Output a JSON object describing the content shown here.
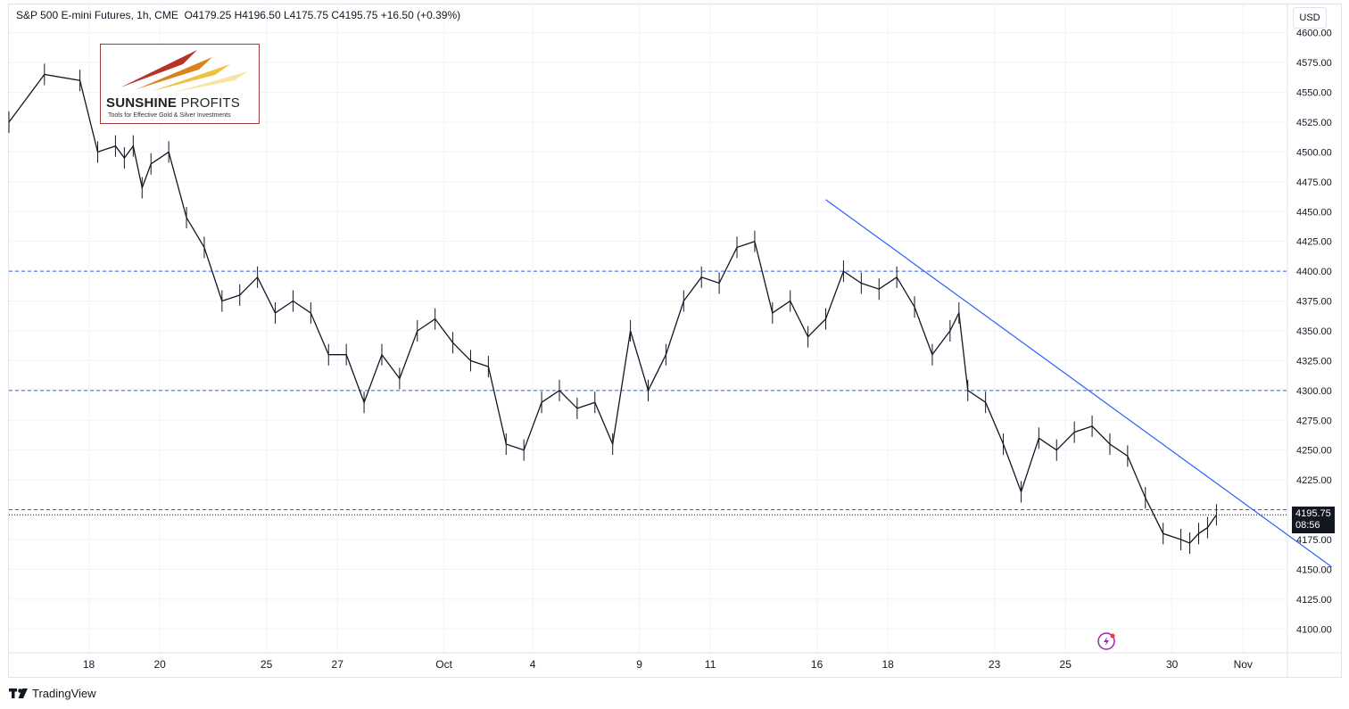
{
  "header": {
    "title": "S&P 500 E-mini Futures, 1h, CME",
    "ohlc": "O4179.25  H4196.50  L4175.75  C4195.75  +16.50 (+0.39%)"
  },
  "currency": "USD",
  "logo": {
    "brand_bold": "SUNSHINE",
    "brand_thin": " PROFITS",
    "tagline": "Tools for Effective Gold & Silver Investments"
  },
  "price_tag": {
    "price": "4195.75",
    "countdown": "08:56"
  },
  "footer": {
    "brand": "TradingView"
  },
  "colors": {
    "candle": "#131722",
    "trendline": "#2962ff",
    "level_line": "#2962ff",
    "grid": "#f0f3fa",
    "logo_border": "#9b3b3b"
  },
  "chart_data": {
    "type": "line",
    "series": [
      {
        "x": [
          0,
          2,
          4,
          5,
          6,
          6.5,
          7,
          7.5,
          8,
          9,
          10,
          11,
          12,
          13,
          14,
          15,
          16,
          17,
          18,
          19,
          20,
          21,
          22,
          23,
          24,
          25,
          26,
          27,
          28,
          29,
          30,
          31,
          32,
          33,
          34,
          35,
          36,
          37,
          38,
          39,
          40,
          41,
          42,
          43,
          44,
          45,
          46,
          47,
          48,
          49,
          50,
          51,
          52,
          53,
          53.5,
          54,
          55,
          56,
          57,
          58,
          59,
          60,
          61,
          62,
          63,
          64,
          65,
          66,
          66.5,
          67,
          67.5,
          68
        ],
        "values": [
          4525,
          4565,
          4560,
          4500,
          4505,
          4495,
          4505,
          4470,
          4490,
          4500,
          4445,
          4420,
          4375,
          4380,
          4395,
          4365,
          4375,
          4365,
          4330,
          4330,
          4290,
          4330,
          4310,
          4350,
          4360,
          4340,
          4325,
          4320,
          4255,
          4250,
          4290,
          4300,
          4285,
          4290,
          4255,
          4350,
          4300,
          4330,
          4375,
          4395,
          4390,
          4420,
          4425,
          4365,
          4375,
          4345,
          4360,
          4400,
          4390,
          4385,
          4395,
          4370,
          4330,
          4350,
          4365,
          4300,
          4290,
          4255,
          4215,
          4260,
          4250,
          4265,
          4270,
          4255,
          4245,
          4210,
          4180,
          4175,
          4172,
          4180,
          4185,
          4195.75
        ]
      }
    ],
    "trendline": {
      "x": [
        46,
        74.5
      ],
      "values": [
        4460,
        4152
      ]
    },
    "horizontal_levels": [
      4400,
      4300,
      4200
    ],
    "last_price": 4195.75,
    "y_ticks": [
      "4600.00",
      "4575.00",
      "4550.00",
      "4525.00",
      "4500.00",
      "4475.00",
      "4450.00",
      "4425.00",
      "4400.00",
      "4375.00",
      "4350.00",
      "4325.00",
      "4300.00",
      "4275.00",
      "4250.00",
      "4225.00",
      "4200.00",
      "4175.00",
      "4150.00",
      "4125.00",
      "4100.00"
    ],
    "x_ticks": [
      {
        "label": "18",
        "x": 4.5
      },
      {
        "label": "20",
        "x": 8.5
      },
      {
        "label": "25",
        "x": 14.5
      },
      {
        "label": "27",
        "x": 18.5
      },
      {
        "label": "Oct",
        "x": 24.5
      },
      {
        "label": "4",
        "x": 29.5
      },
      {
        "label": "9",
        "x": 35.5
      },
      {
        "label": "11",
        "x": 39.5
      },
      {
        "label": "16",
        "x": 45.5
      },
      {
        "label": "18",
        "x": 49.5
      },
      {
        "label": "23",
        "x": 55.5
      },
      {
        "label": "25",
        "x": 59.5
      },
      {
        "label": "30",
        "x": 65.5
      },
      {
        "label": "Nov",
        "x": 69.5
      }
    ],
    "ylim": [
      4080,
      4605
    ],
    "xlim": [
      0,
      72
    ],
    "grid": true,
    "title": "S&P 500 E-mini Futures, 1h, CME",
    "xlabel": "",
    "ylabel": ""
  }
}
